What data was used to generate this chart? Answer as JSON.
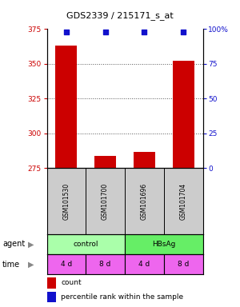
{
  "title": "GDS2339 / 215171_s_at",
  "samples": [
    "GSM101530",
    "GSM101700",
    "GSM101696",
    "GSM101704"
  ],
  "counts": [
    363,
    284,
    287,
    352
  ],
  "percentile_ranks": [
    98,
    98,
    98,
    98
  ],
  "ylim_left": [
    275,
    375
  ],
  "ylim_right": [
    0,
    100
  ],
  "yticks_left": [
    275,
    300,
    325,
    350,
    375
  ],
  "yticks_right": [
    0,
    25,
    50,
    75,
    100
  ],
  "ytick_labels_right": [
    "0",
    "25",
    "50",
    "75",
    "100%"
  ],
  "bar_color": "#cc0000",
  "dot_color": "#1111cc",
  "bar_width": 0.55,
  "agent_groups": [
    {
      "label": "control",
      "color": "#aaffaa",
      "span": [
        0,
        2
      ]
    },
    {
      "label": "HBsAg",
      "color": "#66ee66",
      "span": [
        2,
        4
      ]
    }
  ],
  "time_labels": [
    "4 d",
    "8 d",
    "4 d",
    "8 d"
  ],
  "time_color": "#ee66ee",
  "gsm_bg_color": "#cccccc",
  "left_color": "#cc0000",
  "right_color": "#1111cc",
  "grid_color": "#555555",
  "legend_square_red": "#cc0000",
  "legend_square_blue": "#1111cc",
  "agent_label": "agent",
  "time_label": "time",
  "height_ratios": [
    3.8,
    1.8,
    0.55,
    0.55,
    0.85
  ]
}
